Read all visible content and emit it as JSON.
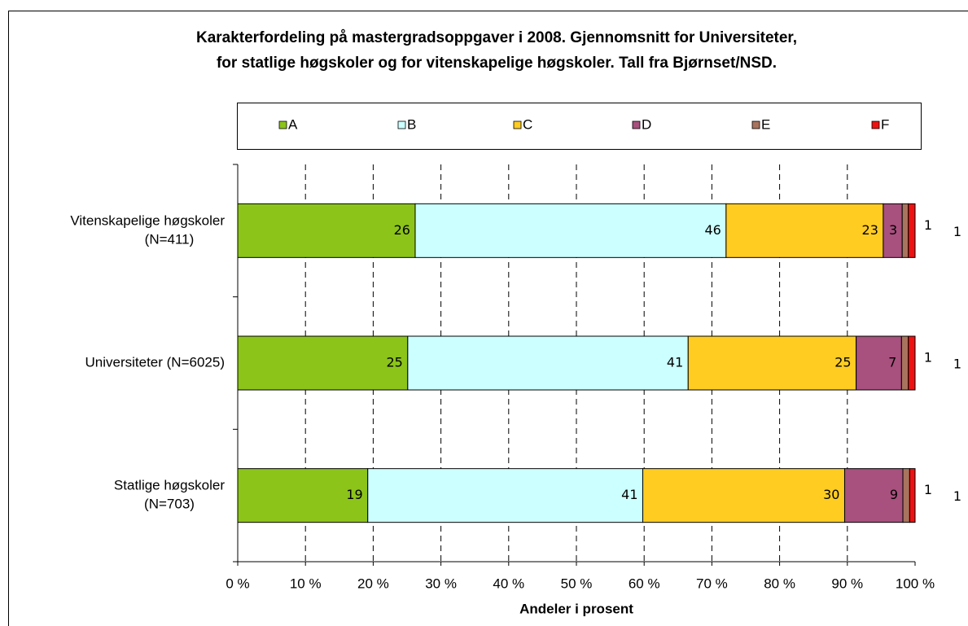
{
  "chart_data": {
    "type": "stacked_barh",
    "title": "Karakterfordeling på mastergradsoppgaver i 2008. Gjennomsnitt for Universiteter,",
    "subtitle": "for statlige høgskoler og for vitenskapelige høgskoler. Tall fra Bjørnset/NSD.",
    "x_label": "Andeler i prosent",
    "categories": [
      "Vitenskapelige høgskoler (N=411)",
      "Universiteter (N=6025)",
      "Statlige høgskoler (N=703)"
    ],
    "series": [
      {
        "name": "A",
        "color": "#8cc41a",
        "values": [
          26.2,
          25.1,
          19.2
        ],
        "value_labels": [
          "26",
          "25",
          "19"
        ]
      },
      {
        "name": "B",
        "color": "#ccffff",
        "values": [
          45.9,
          41.4,
          40.6
        ],
        "value_labels": [
          "46",
          "41",
          "41"
        ]
      },
      {
        "name": "C",
        "color": "#ffcc22",
        "values": [
          23.2,
          24.8,
          29.8
        ],
        "value_labels": [
          "23",
          "25",
          "30"
        ]
      },
      {
        "name": "D",
        "color": "#a8507e",
        "values": [
          2.8,
          6.7,
          8.6
        ],
        "value_labels": [
          "3",
          "7",
          "9"
        ]
      },
      {
        "name": "E",
        "color": "#a8745e",
        "values": [
          0.9,
          1.0,
          1.0
        ],
        "value_labels": [
          "1",
          "1",
          "1"
        ]
      },
      {
        "name": "F",
        "color": "#ee1111",
        "values": [
          1.0,
          1.0,
          0.8
        ],
        "value_labels": [
          "1",
          "1",
          "1"
        ]
      }
    ],
    "xlim": [
      0,
      100
    ],
    "xticks": [
      {
        "value": 0,
        "label": "0 %"
      },
      {
        "value": 10,
        "label": "10 %"
      },
      {
        "value": 20,
        "label": "20 %"
      },
      {
        "value": 30,
        "label": "30 %"
      },
      {
        "value": 40,
        "label": "40 %"
      },
      {
        "value": 50,
        "label": "50 %"
      },
      {
        "value": 60,
        "label": "60 %"
      },
      {
        "value": 70,
        "label": "70 %"
      },
      {
        "value": 80,
        "label": "80 %"
      },
      {
        "value": 90,
        "label": "90 %"
      },
      {
        "value": 100,
        "label": "100 %"
      }
    ],
    "grid": true,
    "legend": "top"
  }
}
